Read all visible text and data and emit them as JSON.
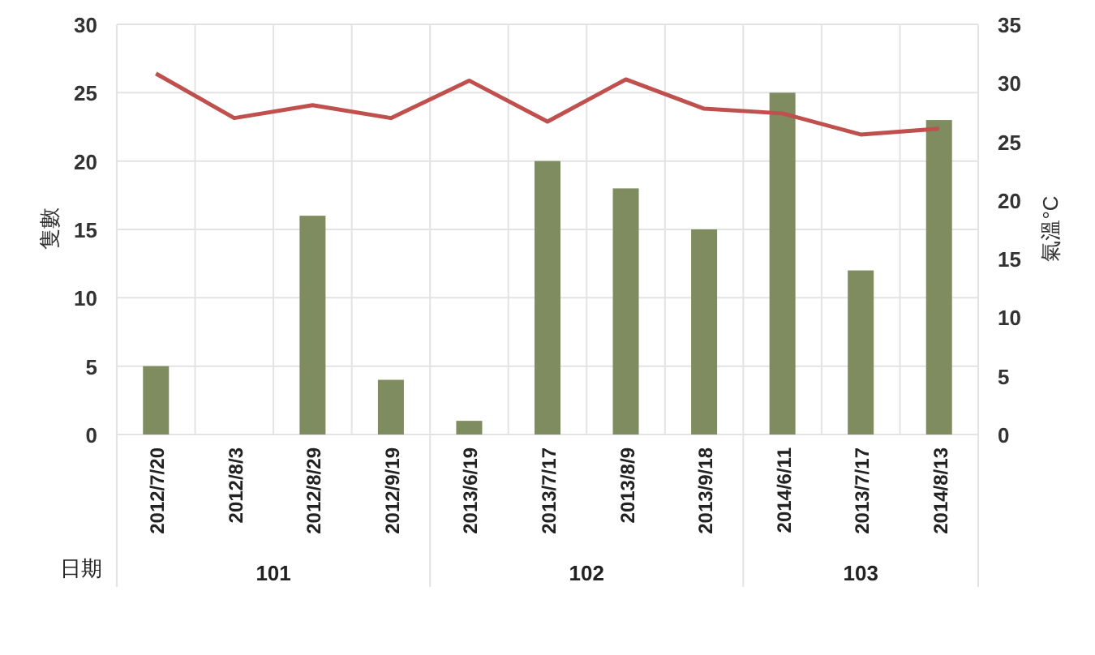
{
  "chart_data": {
    "type": "bar",
    "xlabel": "日期",
    "ylabel": "隻數",
    "y2label": "氣溫°C",
    "categories": [
      "2012/7/20",
      "2012/8/3",
      "2012/8/29",
      "2012/9/19",
      "2013/6/19",
      "2013/7/17",
      "2013/8/9",
      "2013/9/18",
      "2014/6/11",
      "2013/7/17",
      "2014/8/13"
    ],
    "series": [
      {
        "color": "#7f8c5f",
        "values": [
          5,
          0,
          16,
          4,
          1,
          20,
          18,
          15,
          25,
          12,
          23
        ]
      },
      {
        "type": "line",
        "axis": "y2",
        "color": "#c0504d",
        "values": [
          30.8,
          27.0,
          28.1,
          27.0,
          30.2,
          26.7,
          30.3,
          27.8,
          27.4,
          25.6,
          26.1
        ]
      }
    ],
    "ylim": [
      0,
      30
    ],
    "yticks": [
      0,
      5,
      10,
      15,
      20,
      25,
      30
    ],
    "y2lim": [
      0,
      35
    ],
    "y2ticks": [
      0,
      5,
      10,
      15,
      20,
      25,
      30,
      35
    ],
    "grid": true,
    "marker": "none",
    "line_style": "solid",
    "annotations": [
      "101",
      "102",
      "103"
    ]
  }
}
